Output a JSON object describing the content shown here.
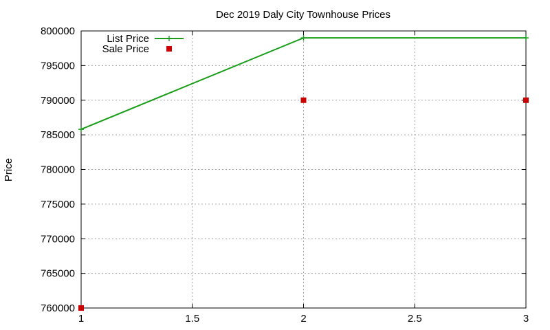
{
  "chart_data": {
    "type": "line",
    "title": "Dec 2019 Daly City Townhouse Prices",
    "xlabel": "",
    "ylabel": "Price",
    "xlim": [
      1,
      3
    ],
    "ylim": [
      760000,
      800000
    ],
    "x_ticks": [
      "1",
      "1.5",
      "2",
      "2.5",
      "3"
    ],
    "y_ticks": [
      "760000",
      "765000",
      "770000",
      "775000",
      "780000",
      "785000",
      "790000",
      "795000",
      "800000"
    ],
    "grid": true,
    "legend_position": "top-left",
    "series": [
      {
        "name": "List Price",
        "style": "line-with-plus-markers",
        "color": "#1a9e1a",
        "x": [
          1,
          2,
          3
        ],
        "y": [
          785800,
          799000,
          799000
        ]
      },
      {
        "name": "Sale Price",
        "style": "square-markers",
        "color": "#cc0000",
        "x": [
          1,
          2,
          3
        ],
        "y": [
          760000,
          790000,
          790000
        ]
      }
    ]
  }
}
